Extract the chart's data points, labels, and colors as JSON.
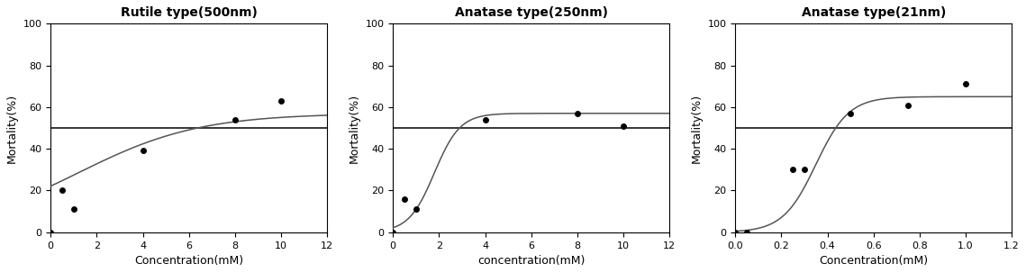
{
  "panels": [
    {
      "title": "Rutile type(500nm)",
      "xlabel": "Concentration(mM)",
      "ylabel": "Mortality(%)",
      "scatter_x": [
        0.0,
        0.5,
        1.0,
        4.0,
        8.0,
        10.0
      ],
      "scatter_y": [
        0,
        20,
        11,
        39,
        54,
        63
      ],
      "hline_y": 50,
      "xlim": [
        0,
        12
      ],
      "ylim": [
        0,
        100
      ],
      "xticks": [
        0,
        2,
        4,
        6,
        8,
        10,
        12
      ],
      "yticks": [
        0,
        20,
        40,
        60,
        80,
        100
      ],
      "curve_L": 57,
      "curve_k": 0.38,
      "curve_x0": 1.2
    },
    {
      "title": "Anatase type(250nm)",
      "xlabel": "concentration(mM)",
      "ylabel": "Mortality(%)",
      "scatter_x": [
        0.0,
        0.5,
        1.0,
        4.0,
        8.0,
        10.0
      ],
      "scatter_y": [
        0,
        16,
        11,
        54,
        57,
        51
      ],
      "hline_y": 50,
      "xlim": [
        0,
        12
      ],
      "ylim": [
        0,
        100
      ],
      "xticks": [
        0,
        2,
        4,
        6,
        8,
        10,
        12
      ],
      "yticks": [
        0,
        20,
        40,
        60,
        80,
        100
      ],
      "curve_L": 57,
      "curve_k": 1.8,
      "curve_x0": 1.8
    },
    {
      "title": "Anatase type(21nm)",
      "xlabel": "Concentration(mM)",
      "ylabel": "Mortality(%)",
      "scatter_x": [
        0.0,
        0.05,
        0.25,
        0.3,
        0.5,
        0.75,
        1.0
      ],
      "scatter_y": [
        0,
        0,
        30,
        30,
        57,
        61,
        71
      ],
      "hline_y": 50,
      "xlim": [
        0,
        1.2
      ],
      "ylim": [
        0,
        100
      ],
      "xticks": [
        0.0,
        0.2,
        0.4,
        0.6,
        0.8,
        1.0,
        1.2
      ],
      "yticks": [
        0,
        20,
        40,
        60,
        80,
        100
      ],
      "curve_L": 65,
      "curve_k": 14.0,
      "curve_x0": 0.35
    }
  ],
  "fig_bg": "#ffffff",
  "line_color": "#555555",
  "scatter_color": "#000000",
  "hline_color": "#000000",
  "title_fontsize": 10,
  "label_fontsize": 9,
  "tick_fontsize": 8
}
